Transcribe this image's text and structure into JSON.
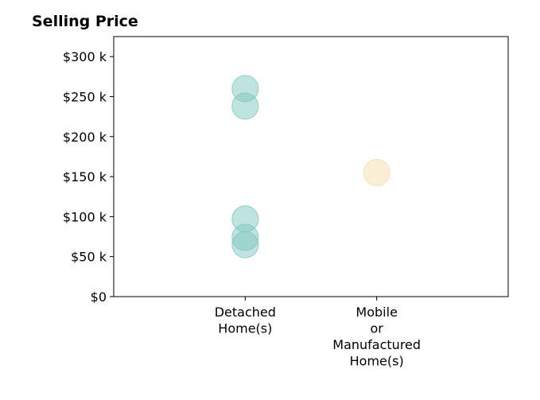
{
  "chart_data": {
    "type": "scatter",
    "title": "Selling Price",
    "xlabel": "",
    "ylabel": "",
    "categories": [
      [
        "Detached",
        "Home(s)"
      ],
      [
        "Mobile",
        "or",
        "Manufactured",
        "Home(s)"
      ]
    ],
    "ylim": [
      0,
      325000
    ],
    "xlim": [
      0,
      3
    ],
    "yticks": [
      0,
      50000,
      100000,
      150000,
      200000,
      250000,
      300000
    ],
    "ytick_labels": [
      "$0",
      "$50 k",
      "$100 k",
      "$150 k",
      "$200 k",
      "$250 k",
      "$300 k"
    ],
    "grid": false,
    "series": [
      {
        "category_index": 0,
        "color": "#80c8be",
        "values": [
          260000,
          238000,
          97000,
          74000,
          65000
        ]
      },
      {
        "category_index": 1,
        "color": "#f5deaa",
        "values": [
          155000
        ]
      }
    ]
  }
}
